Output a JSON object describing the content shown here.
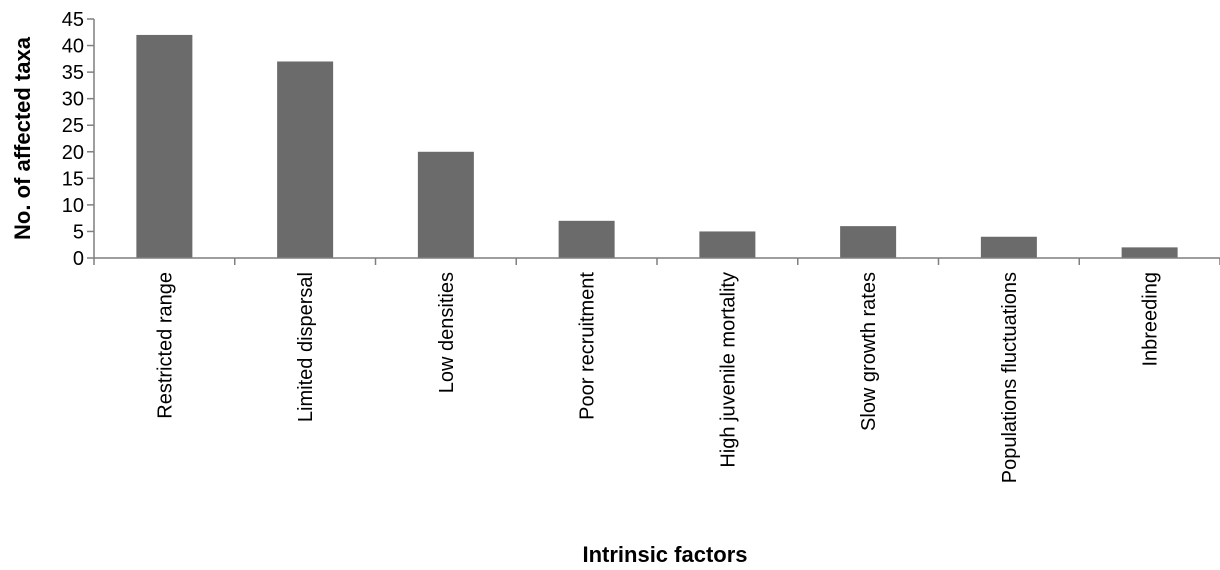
{
  "chart_data": {
    "type": "bar",
    "title": "",
    "xlabel": "Intrinsic factors",
    "ylabel": "No. of affected taxa",
    "ylim": [
      0,
      45
    ],
    "yticks": [
      0,
      5,
      10,
      15,
      20,
      25,
      30,
      35,
      40,
      45
    ],
    "grid": false,
    "bar_color": "#6b6b6b",
    "categories": [
      "Restricted range",
      "Limited dispersal",
      "Low densities",
      "Poor recruitment",
      "High juvenile mortality",
      "Slow growth rates",
      "Populations fluctuations",
      "Inbreeding"
    ],
    "values": [
      42,
      37,
      20,
      7,
      5,
      6,
      4,
      2
    ]
  }
}
